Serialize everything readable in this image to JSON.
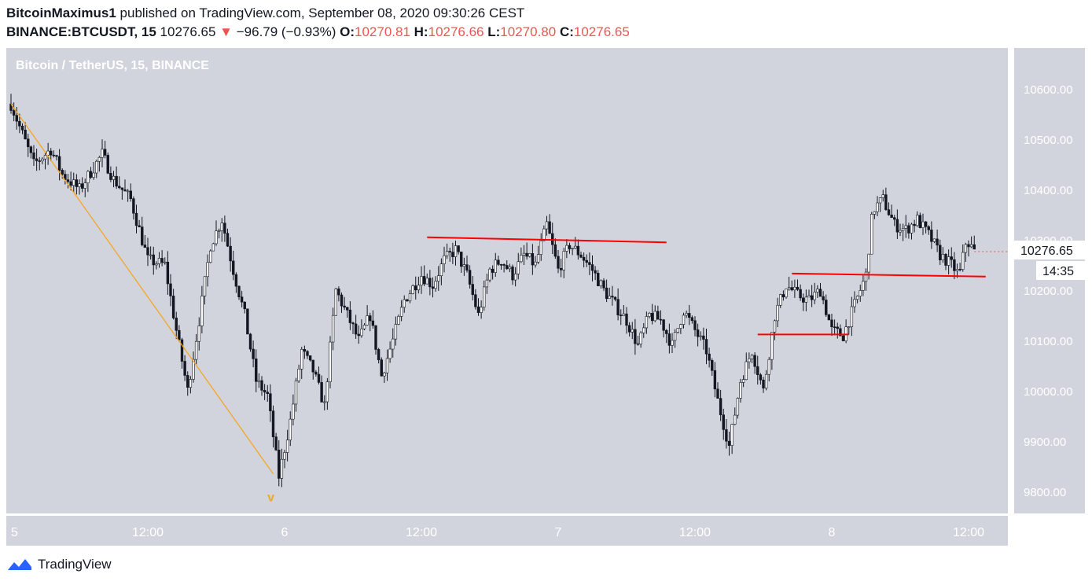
{
  "header": {
    "author": "BitcoinMaximus1",
    "published": "published on TradingView.com, September 08, 2020 09:30:26 CEST"
  },
  "ticker": {
    "symbol": "BINANCE:BTCUSDT, 15",
    "last": "10276.65",
    "arrow": "▼",
    "change": "−96.79 (−0.93%)",
    "o_label": "O:",
    "o_value": "10270.81",
    "h_label": "H:",
    "h_value": "10276.66",
    "l_label": "L:",
    "l_value": "10270.80",
    "c_label": "C:",
    "c_value": "10276.65"
  },
  "chart_data": {
    "type": "candlestick",
    "title": "Bitcoin / TetherUS, 15, BINANCE",
    "background": "#d1d4dc",
    "ylim": [
      9750,
      10680
    ],
    "yticks": [
      "10600.00",
      "10500.00",
      "10400.00",
      "10300.00",
      "10200.00",
      "10100.00",
      "10000.00",
      "9900.00",
      "9800.00"
    ],
    "ytick_values": [
      10600,
      10500,
      10400,
      10300,
      10200,
      10100,
      10000,
      9900,
      9800
    ],
    "x_range_hours": [
      0,
      79
    ],
    "xticks": [
      {
        "label": "5",
        "h": 0
      },
      {
        "label": "12:00",
        "h": 12
      },
      {
        "label": "6",
        "h": 24
      },
      {
        "label": "12:00",
        "h": 36
      },
      {
        "label": "7",
        "h": 48
      },
      {
        "label": "12:00",
        "h": 60
      },
      {
        "label": "8",
        "h": 72
      },
      {
        "label": "12:00",
        "h": 84
      }
    ],
    "price_label": "10276.65",
    "countdown_label": "14:35",
    "current_price": 10276.65,
    "price_path": [
      [
        0,
        10570
      ],
      [
        1,
        10510
      ],
      [
        2,
        10450
      ],
      [
        3.5,
        10480
      ],
      [
        4.5,
        10430
      ],
      [
        6,
        10400
      ],
      [
        8,
        10470
      ],
      [
        9,
        10420
      ],
      [
        10.5,
        10380
      ],
      [
        12,
        10260
      ],
      [
        13.5,
        10250
      ],
      [
        14.5,
        10120
      ],
      [
        15.5,
        10000
      ],
      [
        16.5,
        10140
      ],
      [
        17.5,
        10290
      ],
      [
        18.5,
        10340
      ],
      [
        19.5,
        10240
      ],
      [
        20.5,
        10150
      ],
      [
        21.5,
        10020
      ],
      [
        22.5,
        9990
      ],
      [
        23.5,
        9830
      ],
      [
        24.5,
        9940
      ],
      [
        25.5,
        10080
      ],
      [
        26.5,
        10040
      ],
      [
        27.5,
        9970
      ],
      [
        28.5,
        10200
      ],
      [
        29.5,
        10150
      ],
      [
        30.5,
        10100
      ],
      [
        31.5,
        10150
      ],
      [
        32.5,
        10030
      ],
      [
        33.5,
        10100
      ],
      [
        34.5,
        10180
      ],
      [
        36,
        10230
      ],
      [
        37,
        10210
      ],
      [
        38,
        10260
      ],
      [
        39,
        10280
      ],
      [
        40,
        10230
      ],
      [
        41,
        10150
      ],
      [
        42,
        10240
      ],
      [
        43,
        10260
      ],
      [
        44,
        10230
      ],
      [
        45,
        10270
      ],
      [
        46,
        10250
      ],
      [
        47,
        10330
      ],
      [
        48,
        10240
      ],
      [
        49,
        10290
      ],
      [
        50,
        10270
      ],
      [
        51,
        10240
      ],
      [
        52,
        10200
      ],
      [
        53,
        10170
      ],
      [
        54,
        10140
      ],
      [
        55,
        10090
      ],
      [
        56,
        10150
      ],
      [
        57,
        10140
      ],
      [
        58,
        10090
      ],
      [
        59,
        10160
      ],
      [
        60,
        10120
      ],
      [
        61,
        10080
      ],
      [
        62,
        9980
      ],
      [
        63,
        9890
      ],
      [
        64,
        10020
      ],
      [
        65,
        10080
      ],
      [
        66,
        10000
      ],
      [
        67,
        10150
      ],
      [
        68,
        10210
      ],
      [
        69,
        10190
      ],
      [
        70,
        10180
      ],
      [
        71,
        10200
      ],
      [
        72,
        10120
      ],
      [
        73,
        10110
      ],
      [
        74,
        10170
      ],
      [
        75,
        10230
      ],
      [
        75.6,
        10360
      ],
      [
        76.5,
        10380
      ],
      [
        77.5,
        10330
      ],
      [
        78.5,
        10320
      ],
      [
        79.5,
        10340
      ],
      [
        80.5,
        10310
      ],
      [
        81.5,
        10270
      ],
      [
        82.5,
        10250
      ],
      [
        83.2,
        10230
      ],
      [
        83.8,
        10300
      ],
      [
        84.5,
        10277
      ]
    ],
    "lines": [
      {
        "name": "downtrend",
        "color": "#f5a623",
        "from": [
          0,
          10570
        ],
        "to": [
          23,
          9835
        ]
      },
      {
        "name": "resistance",
        "color": "#ff0000",
        "from": [
          36.5,
          10305
        ],
        "to": [
          57.5,
          10295
        ]
      },
      {
        "name": "support-low",
        "color": "#ff0000",
        "from": [
          65.5,
          10112
        ],
        "to": [
          73.5,
          10112
        ]
      },
      {
        "name": "support-high",
        "color": "#ff0000",
        "from": [
          68.5,
          10233
        ],
        "to": [
          85.5,
          10227
        ]
      }
    ],
    "annotations": [
      {
        "text": "v",
        "color": "#f5a623",
        "h": 22.8,
        "price": 9790
      }
    ]
  },
  "footer": {
    "brand": "TradingView"
  }
}
